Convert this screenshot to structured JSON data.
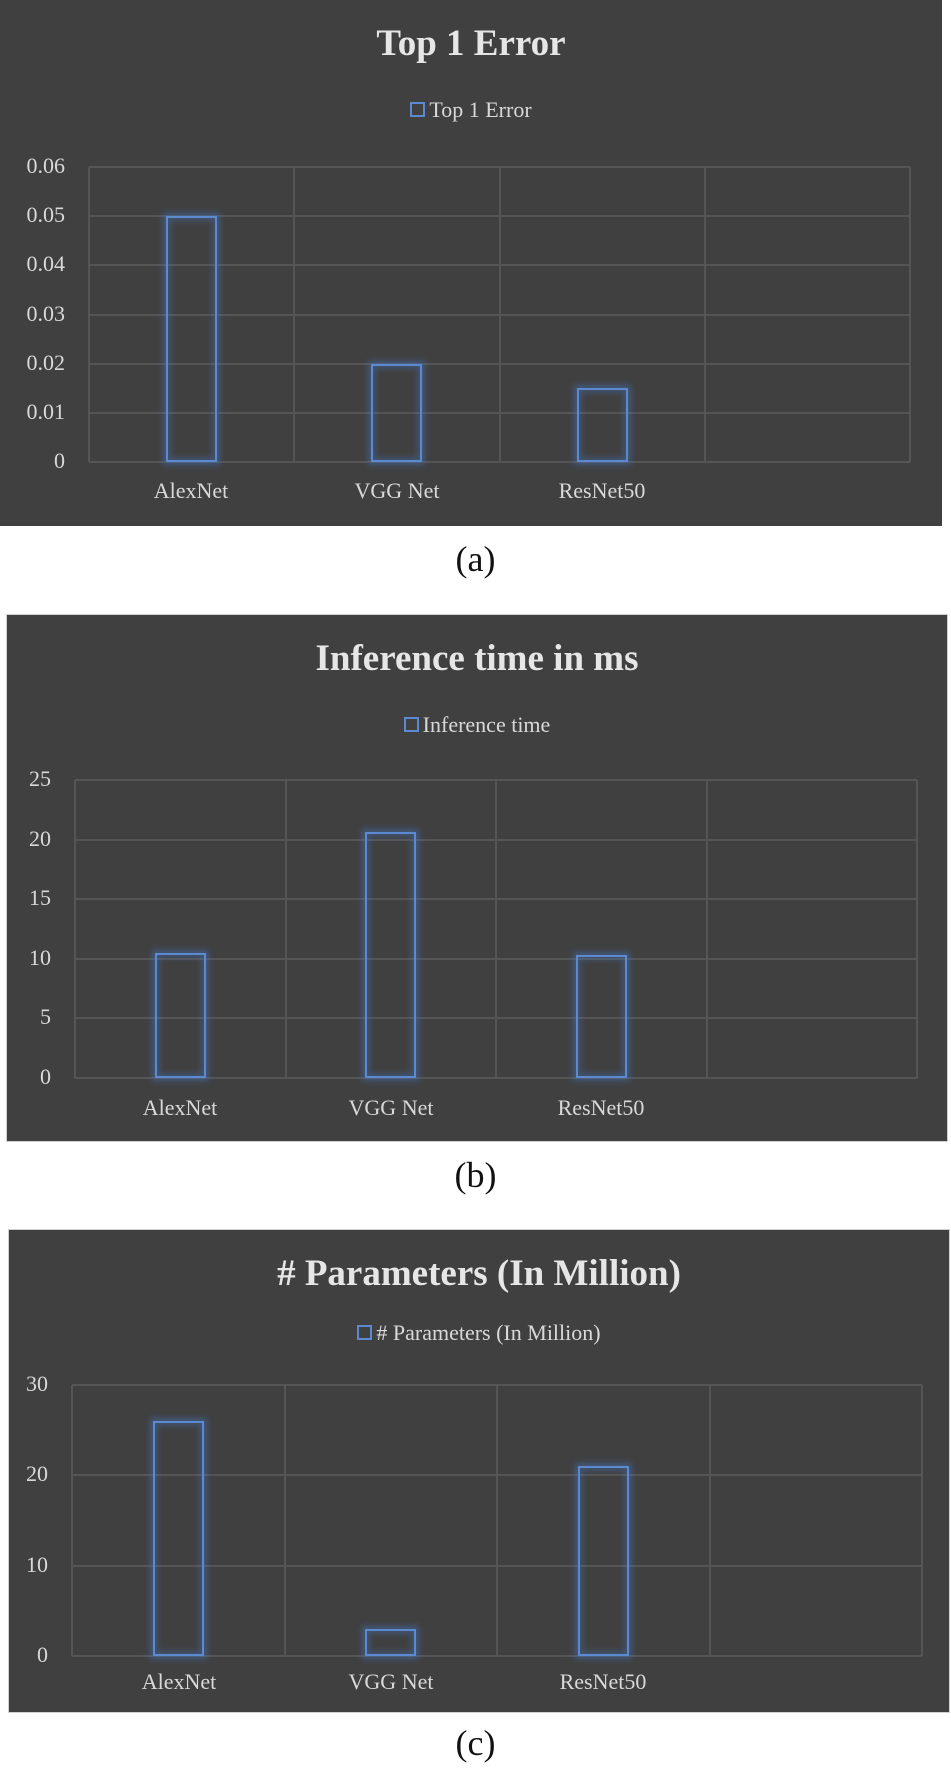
{
  "chart_data": [
    {
      "type": "bar",
      "title": "Top 1 Error",
      "legend": [
        "Top 1 Error"
      ],
      "categories": [
        "AlexNet",
        "VGG Net",
        "ResNet50"
      ],
      "series": [
        {
          "name": "Top 1 Error",
          "values": [
            0.05,
            0.02,
            0.015
          ]
        }
      ],
      "yticks": [
        "0",
        "0.01",
        "0.02",
        "0.03",
        "0.04",
        "0.05",
        "0.06"
      ],
      "ylim": [
        0,
        0.06
      ],
      "xlabel": "",
      "ylabel": "",
      "grid": true,
      "legend_position": "top",
      "caption": "(a)"
    },
    {
      "type": "bar",
      "title": "Inference time in ms",
      "legend": [
        "Inference time"
      ],
      "categories": [
        "AlexNet",
        "VGG Net",
        "ResNet50"
      ],
      "series": [
        {
          "name": "Inference time",
          "values": [
            10.5,
            20.6,
            10.3
          ]
        }
      ],
      "yticks": [
        "0",
        "5",
        "10",
        "15",
        "20",
        "25"
      ],
      "ylim": [
        0,
        25
      ],
      "xlabel": "",
      "ylabel": "",
      "grid": true,
      "legend_position": "top",
      "caption": "(b)"
    },
    {
      "type": "bar",
      "title": "# Parameters (In Million)",
      "legend": [
        "# Parameters (In Million)"
      ],
      "categories": [
        "AlexNet",
        "VGG Net",
        "ResNet50"
      ],
      "series": [
        {
          "name": "# Parameters (In Million)",
          "values": [
            26,
            3,
            21
          ]
        }
      ],
      "yticks": [
        "0",
        "10",
        "20",
        "30"
      ],
      "ylim": [
        0,
        30
      ],
      "xlabel": "",
      "ylabel": "",
      "grid": true,
      "legend_position": "top",
      "caption": "(c)"
    }
  ],
  "colors": {
    "panel_background": "#404040",
    "bar_outline": "#5b8ad0",
    "gridline": "#555555",
    "text": "#d9d9d9",
    "title_text": "#e6e6e6"
  }
}
